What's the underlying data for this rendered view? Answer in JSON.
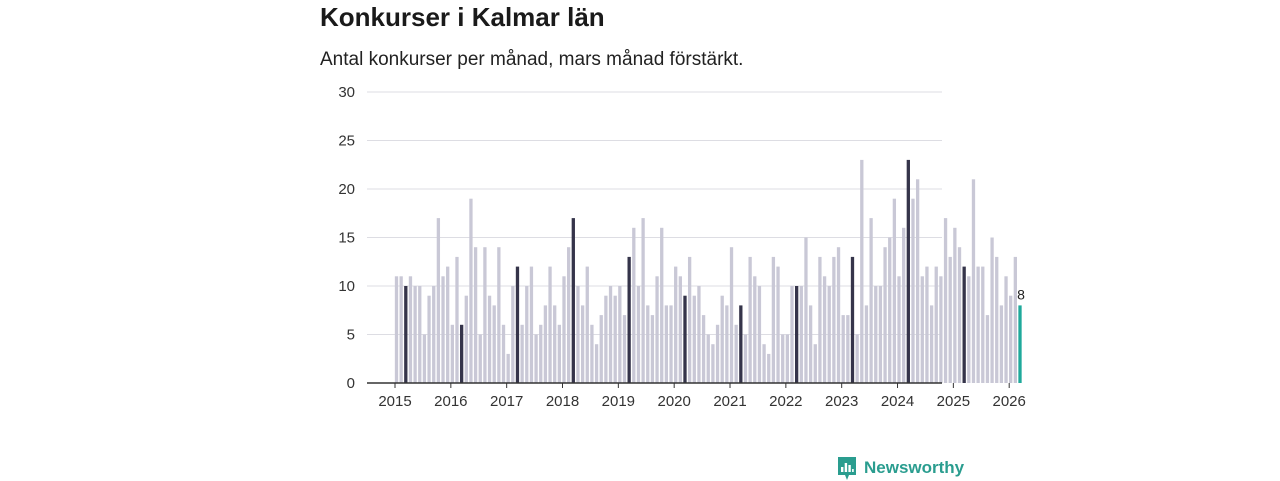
{
  "title": "Konkurser i Kalmar län",
  "subtitle": "Antal konkurser per månad, mars månad förstärkt.",
  "brand": "Newsworthy",
  "colors": {
    "normal": "#c9c8d6",
    "highlight": "#35344a",
    "latest": "#1fa99b",
    "grid": "#dddde3",
    "axis": "#333333"
  },
  "chart_data": {
    "type": "bar",
    "title": "Konkurser i Kalmar län",
    "subtitle": "Antal konkurser per månad, mars månad förstärkt.",
    "xlabel": "",
    "ylabel": "",
    "ylim": [
      0,
      30
    ],
    "yticks": [
      0,
      5,
      10,
      15,
      20,
      25,
      30
    ],
    "xticks": [
      "2015",
      "2016",
      "2017",
      "2018",
      "2019",
      "2020",
      "2021",
      "2022",
      "2023",
      "2024",
      "2025",
      "2026"
    ],
    "start": "2015-01",
    "highlight_month": "mars",
    "last_label": "8",
    "values": [
      11,
      11,
      10,
      11,
      10,
      10,
      5,
      9,
      10,
      17,
      11,
      12,
      6,
      13,
      6,
      9,
      19,
      14,
      5,
      14,
      9,
      8,
      14,
      6,
      3,
      10,
      12,
      6,
      10,
      12,
      5,
      6,
      8,
      12,
      8,
      6,
      11,
      14,
      17,
      10,
      8,
      12,
      6,
      4,
      7,
      9,
      10,
      9,
      10,
      7,
      13,
      16,
      10,
      17,
      8,
      7,
      11,
      16,
      8,
      8,
      12,
      11,
      9,
      13,
      9,
      10,
      7,
      5,
      4,
      6,
      9,
      8,
      14,
      6,
      8,
      5,
      13,
      11,
      10,
      4,
      3,
      13,
      12,
      5,
      5,
      10,
      10,
      10,
      15,
      8,
      4,
      13,
      11,
      10,
      13,
      14,
      7,
      7,
      13,
      5,
      23,
      8,
      17,
      10,
      10,
      14,
      15,
      19,
      11,
      16,
      23,
      19,
      21,
      11,
      12,
      8,
      12,
      11,
      17,
      13,
      16,
      14,
      12,
      11,
      21,
      12,
      12,
      7,
      15,
      13,
      8,
      11,
      9,
      13,
      8
    ]
  }
}
